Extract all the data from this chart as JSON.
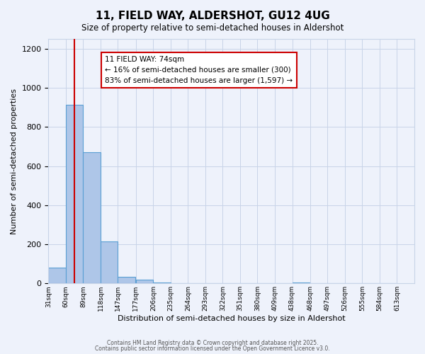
{
  "title": "11, FIELD WAY, ALDERSHOT, GU12 4UG",
  "subtitle": "Size of property relative to semi-detached houses in Aldershot",
  "xlabel": "Distribution of semi-detached houses by size in Aldershot",
  "ylabel": "Number of semi-detached properties",
  "bar_left_edges": [
    31,
    60,
    89,
    118,
    147,
    177,
    206,
    235,
    264,
    293,
    322,
    351,
    380,
    409,
    438,
    468,
    497,
    526,
    555,
    584
  ],
  "bar_heights": [
    80,
    915,
    670,
    215,
    35,
    20,
    5,
    0,
    0,
    0,
    0,
    0,
    0,
    0,
    5,
    0,
    0,
    0,
    0,
    0
  ],
  "bin_width": 29,
  "bar_color": "#aec6e8",
  "bar_edge_color": "#5a9fd4",
  "property_value": 74,
  "red_line_color": "#cc0000",
  "annotation_line1": "11 FIELD WAY: 74sqm",
  "annotation_line2": "← 16% of semi-detached houses are smaller (300)",
  "annotation_line3": "83% of semi-detached houses are larger (1,597) →",
  "annotation_box_edge_color": "#cc0000",
  "ylim": [
    0,
    1250
  ],
  "yticks": [
    0,
    200,
    400,
    600,
    800,
    1000,
    1200
  ],
  "tick_labels": [
    "31sqm",
    "60sqm",
    "89sqm",
    "118sqm",
    "147sqm",
    "177sqm",
    "206sqm",
    "235sqm",
    "264sqm",
    "293sqm",
    "322sqm",
    "351sqm",
    "380sqm",
    "409sqm",
    "438sqm",
    "468sqm",
    "497sqm",
    "526sqm",
    "555sqm",
    "584sqm",
    "613sqm"
  ],
  "footer1": "Contains HM Land Registry data © Crown copyright and database right 2025.",
  "footer2": "Contains public sector information licensed under the Open Government Licence v3.0.",
  "background_color": "#eef2fb",
  "grid_color": "#c8d4e8"
}
